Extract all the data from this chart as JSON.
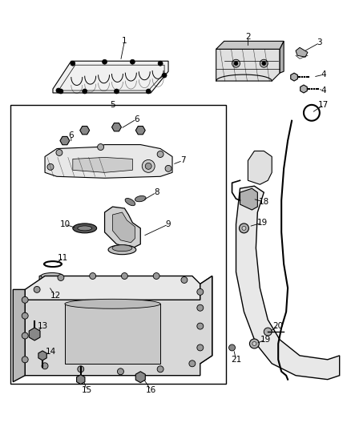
{
  "bg_color": "#ffffff",
  "line_color": "#000000",
  "gray_light": "#d8d8d8",
  "gray_mid": "#b0b0b0",
  "gray_dark": "#888888"
}
